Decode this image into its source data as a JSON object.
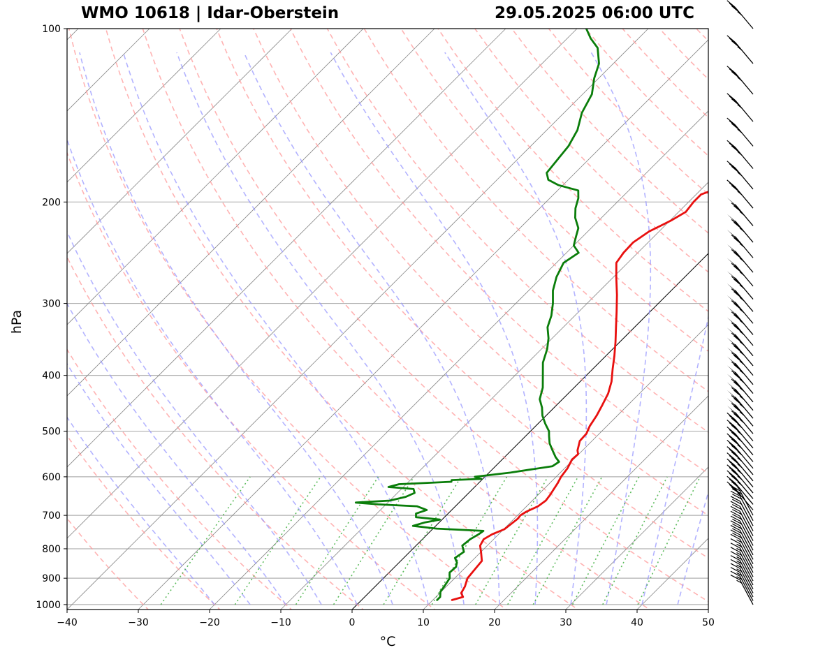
{
  "header": {
    "station": "WMO 10618 | Idar-Oberstein",
    "datetime": "29.05.2025 06:00 UTC"
  },
  "chart_data": {
    "type": "line",
    "subtype": "skew-T log-P sounding",
    "title": "WMO 10618 | Idar-Oberstein",
    "subtitle": "29.05.2025 06:00 UTC",
    "xlabel": "°C",
    "ylabel": "hPa",
    "xlim": [
      -40,
      50
    ],
    "ylim": [
      1020,
      100
    ],
    "y_scale": "log",
    "x_ticks": [
      "−40",
      "−30",
      "−20",
      "−10",
      "0",
      "10",
      "20",
      "30",
      "40",
      "50"
    ],
    "y_ticks": [
      "100",
      "200",
      "300",
      "400",
      "500",
      "600",
      "700",
      "800",
      "900",
      "1000"
    ],
    "x_tick_values": [
      -40,
      -30,
      -20,
      -10,
      0,
      10,
      20,
      30,
      40,
      50
    ],
    "y_tick_values": [
      100,
      200,
      300,
      400,
      500,
      600,
      700,
      800,
      900,
      1000
    ],
    "grid": "horizontal isobars",
    "colors": {
      "temperature": "#e8100f",
      "dewpoint": "#0a7d0a",
      "dry_adiabats": "#ff9999",
      "moist_adiabats": "#9999ff",
      "mixing_ratio": "#33aa33",
      "isotherms": "#888888",
      "zero_isotherm": "#000000",
      "isobar_grid": "#b0b0b0"
    },
    "series": [
      {
        "key": "temperature",
        "color": "#e8100f",
        "points": [
          [
            982,
            12.7
          ],
          [
            970,
            13.8
          ],
          [
            955,
            13.0
          ],
          [
            930,
            12.6
          ],
          [
            900,
            11.8
          ],
          [
            870,
            11.6
          ],
          [
            840,
            11.4
          ],
          [
            810,
            10.0
          ],
          [
            790,
            9.0
          ],
          [
            770,
            8.6
          ],
          [
            755,
            9.1
          ],
          [
            740,
            10.1
          ],
          [
            725,
            10.3
          ],
          [
            710,
            10.5
          ],
          [
            700,
            10.4
          ],
          [
            690,
            10.7
          ],
          [
            675,
            11.6
          ],
          [
            660,
            11.9
          ],
          [
            645,
            11.7
          ],
          [
            630,
            11.4
          ],
          [
            615,
            11.1
          ],
          [
            600,
            10.7
          ],
          [
            580,
            10.4
          ],
          [
            560,
            9.8
          ],
          [
            548,
            9.9
          ],
          [
            540,
            9.3
          ],
          [
            520,
            8.3
          ],
          [
            505,
            8.2
          ],
          [
            490,
            7.6
          ],
          [
            470,
            7.1
          ],
          [
            450,
            6.4
          ],
          [
            430,
            5.6
          ],
          [
            410,
            4.4
          ],
          [
            390,
            2.8
          ],
          [
            370,
            1.2
          ],
          [
            350,
            -0.6
          ],
          [
            330,
            -2.6
          ],
          [
            310,
            -4.7
          ],
          [
            290,
            -7.0
          ],
          [
            270,
            -9.6
          ],
          [
            255,
            -11.6
          ],
          [
            245,
            -12.0
          ],
          [
            235,
            -12.1
          ],
          [
            225,
            -11.4
          ],
          [
            220,
            -10.6
          ],
          [
            215,
            -9.8
          ],
          [
            208,
            -9.0
          ],
          [
            200,
            -9.3
          ],
          [
            194,
            -9.3
          ],
          [
            190,
            -8.0
          ],
          [
            187,
            -5.0
          ],
          [
            183,
            -2.8
          ],
          [
            176,
            -1.0
          ],
          [
            170,
            -0.7
          ],
          [
            160,
            0.9
          ],
          [
            150,
            2.5
          ],
          [
            140,
            4.0
          ],
          [
            130,
            6.5
          ],
          [
            120,
            9.4
          ],
          [
            112,
            13.0
          ],
          [
            108,
            15.9
          ],
          [
            105,
            16.0
          ],
          [
            100,
            15.6
          ]
        ]
      },
      {
        "key": "dewpoint",
        "color": "#0a7d0a",
        "points": [
          [
            982,
            10.6
          ],
          [
            970,
            10.6
          ],
          [
            950,
            9.9
          ],
          [
            930,
            9.7
          ],
          [
            900,
            9.3
          ],
          [
            880,
            8.5
          ],
          [
            860,
            8.6
          ],
          [
            845,
            8.1
          ],
          [
            830,
            7.2
          ],
          [
            810,
            7.6
          ],
          [
            790,
            6.5
          ],
          [
            770,
            6.7
          ],
          [
            755,
            7.2
          ],
          [
            745,
            7.4
          ],
          [
            738,
            0.5
          ],
          [
            730,
            -3.2
          ],
          [
            720,
            -2.0
          ],
          [
            712,
            -0.3
          ],
          [
            705,
            -4.0
          ],
          [
            695,
            -4.5
          ],
          [
            685,
            -3.5
          ],
          [
            675,
            -5.4
          ],
          [
            670,
            -11.1
          ],
          [
            665,
            -14.5
          ],
          [
            660,
            -10.0
          ],
          [
            650,
            -8.3
          ],
          [
            640,
            -7.6
          ],
          [
            630,
            -8.3
          ],
          [
            625,
            -12.1
          ],
          [
            618,
            -11.0
          ],
          [
            612,
            -4.0
          ],
          [
            608,
            -4.2
          ],
          [
            605,
            -0.2
          ],
          [
            600,
            -1.4
          ],
          [
            590,
            3.0
          ],
          [
            575,
            8.0
          ],
          [
            565,
            8.3
          ],
          [
            555,
            7.2
          ],
          [
            540,
            5.8
          ],
          [
            525,
            4.4
          ],
          [
            510,
            3.3
          ],
          [
            500,
            2.6
          ],
          [
            485,
            1.0
          ],
          [
            470,
            -0.5
          ],
          [
            455,
            -1.7
          ],
          [
            440,
            -3.2
          ],
          [
            420,
            -4.4
          ],
          [
            400,
            -6.1
          ],
          [
            380,
            -7.9
          ],
          [
            360,
            -9.2
          ],
          [
            345,
            -10.5
          ],
          [
            330,
            -12.2
          ],
          [
            315,
            -13.3
          ],
          [
            300,
            -14.8
          ],
          [
            285,
            -16.6
          ],
          [
            270,
            -18.0
          ],
          [
            255,
            -19.0
          ],
          [
            245,
            -18.3
          ],
          [
            238,
            -20.0
          ],
          [
            230,
            -20.9
          ],
          [
            222,
            -21.8
          ],
          [
            213,
            -23.7
          ],
          [
            205,
            -25.0
          ],
          [
            197,
            -26.0
          ],
          [
            191,
            -27.1
          ],
          [
            187,
            -30.6
          ],
          [
            183,
            -32.8
          ],
          [
            178,
            -34.0
          ],
          [
            170,
            -34.3
          ],
          [
            160,
            -34.7
          ],
          [
            150,
            -35.7
          ],
          [
            140,
            -37.5
          ],
          [
            130,
            -38.7
          ],
          [
            122,
            -40.6
          ],
          [
            115,
            -42.0
          ],
          [
            108,
            -44.4
          ],
          [
            104,
            -46.7
          ],
          [
            100,
            -48.7
          ]
        ]
      }
    ],
    "wind_barbs": {
      "note": "wind barbs on right side, mostly westerly, pennants between about 220 and 500 hPa"
    }
  }
}
